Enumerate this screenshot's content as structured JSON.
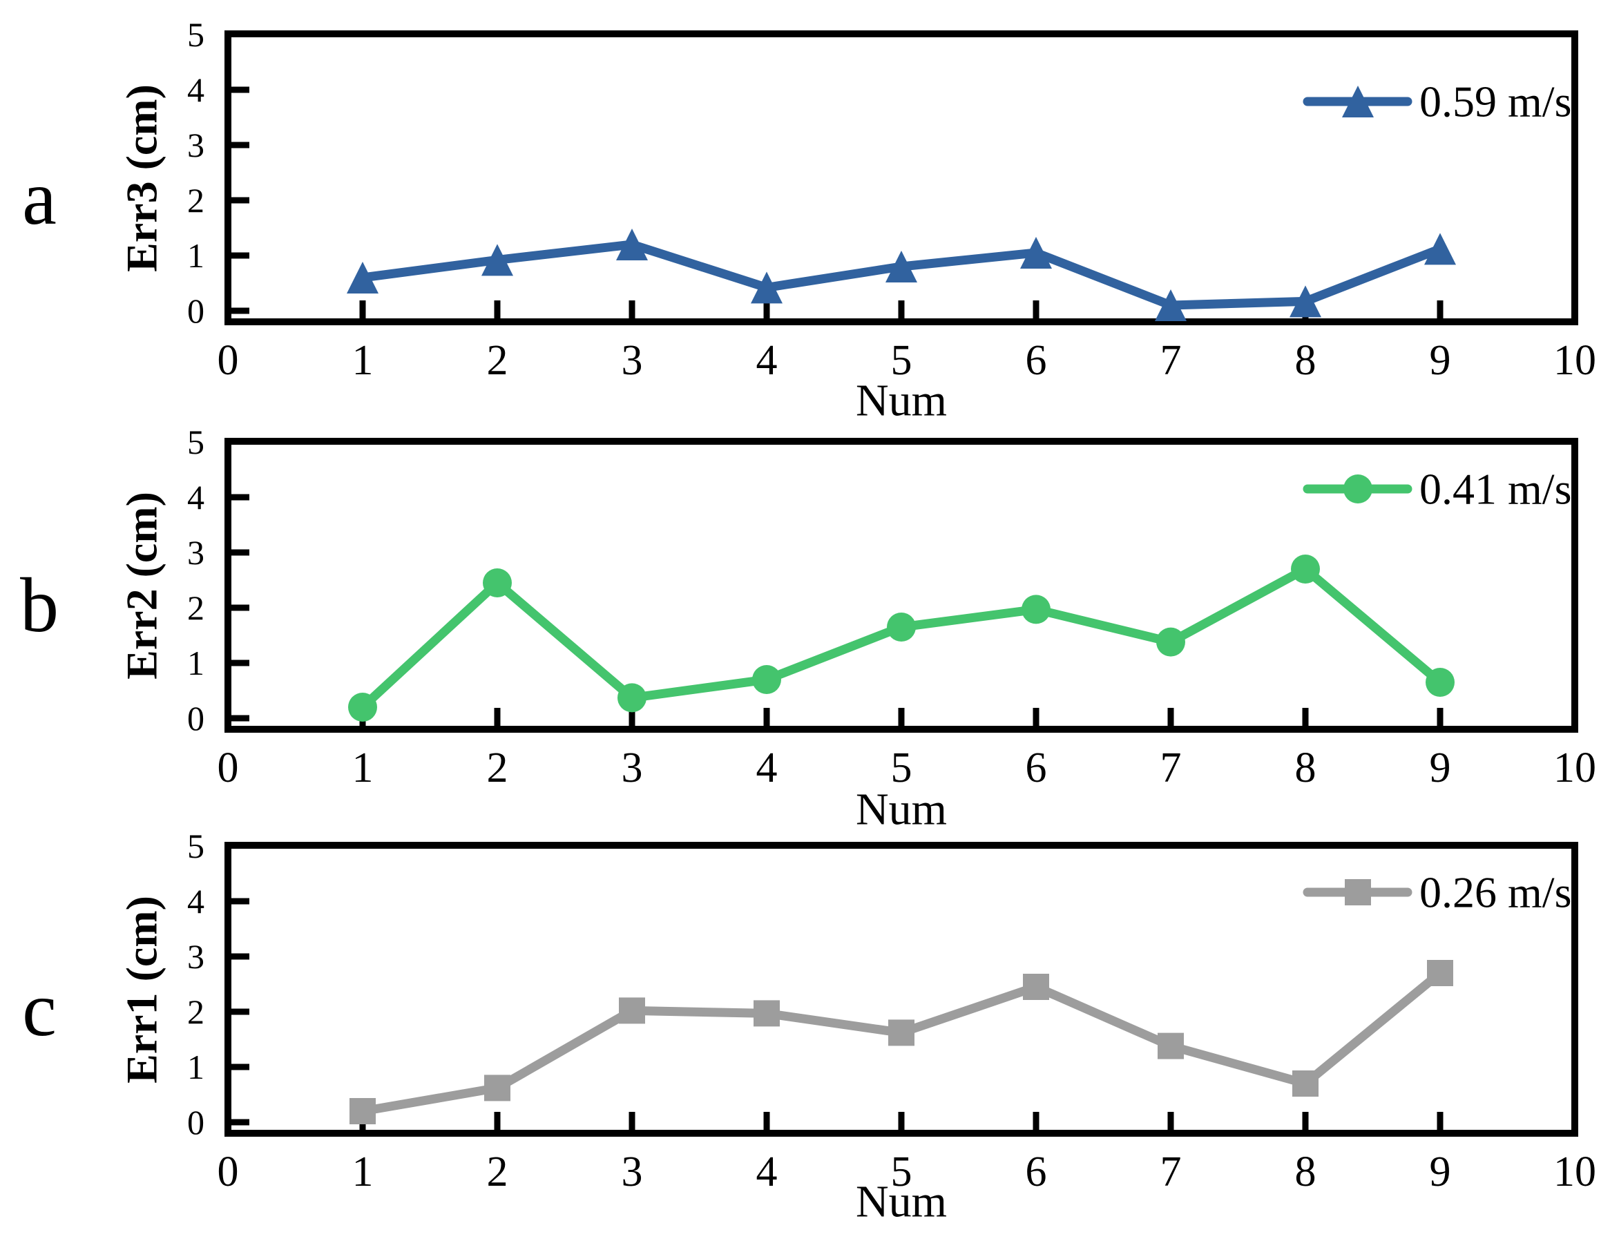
{
  "figure": {
    "background": "#ffffff",
    "axis_color": "#000000",
    "panels": [
      {
        "panel_label": "a",
        "legend_label": "0.59 m/s",
        "y_axis_label": "Err3 (cm)",
        "x_axis_label": "Num",
        "marker": "triangle",
        "color": "#31629F"
      },
      {
        "panel_label": "b",
        "legend_label": "0.41 m/s",
        "y_axis_label": "Err2 (cm)",
        "x_axis_label": "Num",
        "marker": "circle",
        "color": "#44C46D"
      },
      {
        "panel_label": "c",
        "legend_label": "0.26 m/s",
        "y_axis_label": "Err1 (cm)",
        "x_axis_label": "Num",
        "marker": "square",
        "color": "#9D9D9D"
      }
    ]
  },
  "chart_data": [
    {
      "type": "line",
      "panel_label": "a",
      "xlabel": "Num",
      "ylabel": "Err3 (cm)",
      "xlim": [
        0,
        10
      ],
      "ylim": [
        0,
        5
      ],
      "xticks": [
        0,
        1,
        2,
        3,
        4,
        5,
        6,
        7,
        8,
        9,
        10
      ],
      "yticks": [
        0,
        1,
        2,
        3,
        4,
        5
      ],
      "grid": false,
      "legend_position": "upper right",
      "series": [
        {
          "name": "0.59 m/s",
          "marker": "triangle",
          "color": "#31629F",
          "x": [
            1,
            2,
            3,
            4,
            5,
            6,
            7,
            8,
            9
          ],
          "y": [
            0.6,
            0.92,
            1.2,
            0.42,
            0.8,
            1.05,
            0.1,
            0.17,
            1.12
          ]
        }
      ]
    },
    {
      "type": "line",
      "panel_label": "b",
      "xlabel": "Num",
      "ylabel": "Err2 (cm)",
      "xlim": [
        0,
        10
      ],
      "ylim": [
        0,
        5
      ],
      "xticks": [
        0,
        1,
        2,
        3,
        4,
        5,
        6,
        7,
        8,
        9,
        10
      ],
      "yticks": [
        0,
        1,
        2,
        3,
        4,
        5
      ],
      "grid": false,
      "legend_position": "upper right",
      "series": [
        {
          "name": "0.41 m/s",
          "marker": "circle",
          "color": "#44C46D",
          "x": [
            1,
            2,
            3,
            4,
            5,
            6,
            7,
            8,
            9
          ],
          "y": [
            0.2,
            2.45,
            0.37,
            0.7,
            1.65,
            1.97,
            1.38,
            2.7,
            0.65
          ]
        }
      ]
    },
    {
      "type": "line",
      "panel_label": "c",
      "xlabel": "Num",
      "ylabel": "Err1 (cm)",
      "xlim": [
        0,
        10
      ],
      "ylim": [
        0,
        5
      ],
      "xticks": [
        0,
        1,
        2,
        3,
        4,
        5,
        6,
        7,
        8,
        9,
        10
      ],
      "yticks": [
        0,
        1,
        2,
        3,
        4,
        5
      ],
      "grid": false,
      "legend_position": "upper right",
      "series": [
        {
          "name": "0.26 m/s",
          "marker": "square",
          "color": "#9D9D9D",
          "x": [
            1,
            2,
            3,
            4,
            5,
            6,
            7,
            8,
            9
          ],
          "y": [
            0.2,
            0.62,
            2.02,
            1.97,
            1.62,
            2.45,
            1.38,
            0.7,
            2.7
          ]
        }
      ]
    }
  ]
}
